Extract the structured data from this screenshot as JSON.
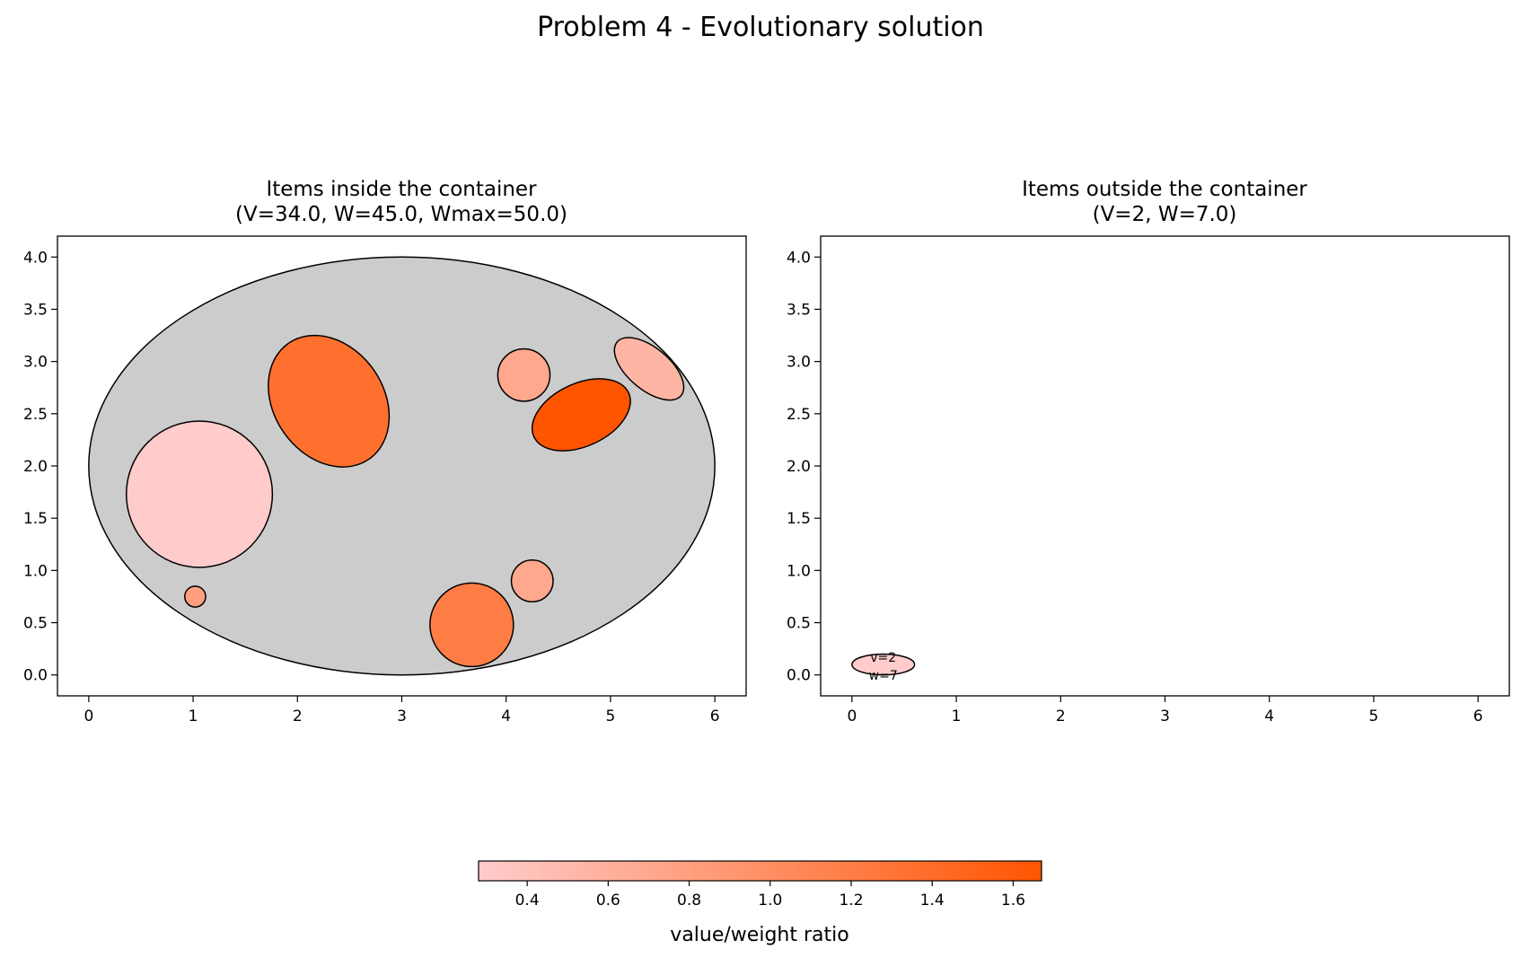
{
  "chart_data": {
    "title": "Problem 4 - Evolutionary solution",
    "colorbar": {
      "label": "value/weight ratio",
      "min": 0.28,
      "max": 1.67,
      "ticks": [
        0.4,
        0.6,
        0.8,
        1.0,
        1.2,
        1.4,
        1.6
      ],
      "tick_labels": [
        "0.4",
        "0.6",
        "0.8",
        "1.0",
        "1.2",
        "1.4",
        "1.6"
      ],
      "color_low": "#ffcccc",
      "color_high": "#ff5500"
    },
    "panels": [
      {
        "id": "inside",
        "type": "scatter",
        "title_line1": "Items inside the container",
        "title_line2": "(V=34.0, W=45.0, Wmax=50.0)",
        "xlim": [
          -0.3,
          6.3
        ],
        "ylim": [
          -0.2,
          4.2
        ],
        "xticks": [
          0,
          1,
          2,
          3,
          4,
          5,
          6
        ],
        "xtick_labels": [
          "0",
          "1",
          "2",
          "3",
          "4",
          "5",
          "6"
        ],
        "yticks": [
          0.0,
          0.5,
          1.0,
          1.5,
          2.0,
          2.5,
          3.0,
          3.5,
          4.0
        ],
        "ytick_labels": [
          "0.0",
          "0.5",
          "1.0",
          "1.5",
          "2.0",
          "2.5",
          "3.0",
          "3.5",
          "4.0"
        ],
        "container": {
          "cx": 3.0,
          "cy": 2.0,
          "w": 6.0,
          "h": 4.0,
          "color": "#cccccc"
        },
        "items": [
          {
            "name": "large-pink-circle",
            "cx": 1.06,
            "cy": 1.73,
            "w": 1.4,
            "h": 1.4,
            "angle": 0,
            "ratio": 0.29
          },
          {
            "name": "tilted-orange-ellipse",
            "cx": 2.3,
            "cy": 2.62,
            "w": 1.05,
            "h": 1.35,
            "angle": 35,
            "ratio": 1.35
          },
          {
            "name": "small-circle-top-right",
            "cx": 4.17,
            "cy": 2.87,
            "w": 0.5,
            "h": 0.5,
            "angle": 0,
            "ratio": 0.7
          },
          {
            "name": "dark-orange-ellipse",
            "cx": 4.72,
            "cy": 2.49,
            "w": 1.0,
            "h": 0.6,
            "angle": 25,
            "ratio": 1.67
          },
          {
            "name": "light-ellipse-right-edge",
            "cx": 5.37,
            "cy": 2.93,
            "w": 0.8,
            "h": 0.4,
            "angle": -40,
            "ratio": 0.55
          },
          {
            "name": "tiny-circle",
            "cx": 1.02,
            "cy": 0.75,
            "w": 0.2,
            "h": 0.2,
            "angle": 0,
            "ratio": 0.8
          },
          {
            "name": "medium-orange-circle",
            "cx": 3.67,
            "cy": 0.48,
            "w": 0.8,
            "h": 0.8,
            "angle": 0,
            "ratio": 1.2
          },
          {
            "name": "small-circle-lower-right",
            "cx": 4.25,
            "cy": 0.9,
            "w": 0.4,
            "h": 0.4,
            "angle": 0,
            "ratio": 0.7
          }
        ]
      },
      {
        "id": "outside",
        "type": "scatter",
        "title_line1": "Items outside the container",
        "title_line2": "(V=2, W=7.0)",
        "xlim": [
          -0.3,
          6.3
        ],
        "ylim": [
          -0.2,
          4.2
        ],
        "xticks": [
          0,
          1,
          2,
          3,
          4,
          5,
          6
        ],
        "xtick_labels": [
          "0",
          "1",
          "2",
          "3",
          "4",
          "5",
          "6"
        ],
        "yticks": [
          0.0,
          0.5,
          1.0,
          1.5,
          2.0,
          2.5,
          3.0,
          3.5,
          4.0
        ],
        "ytick_labels": [
          "0.0",
          "0.5",
          "1.0",
          "1.5",
          "2.0",
          "2.5",
          "3.0",
          "3.5",
          "4.0"
        ],
        "container": null,
        "items": [
          {
            "name": "outside-item",
            "cx": 0.3,
            "cy": 0.1,
            "w": 0.6,
            "h": 0.2,
            "angle": 0,
            "ratio": 0.29,
            "label_v": "v=2",
            "label_w": "w=7"
          }
        ]
      }
    ]
  }
}
